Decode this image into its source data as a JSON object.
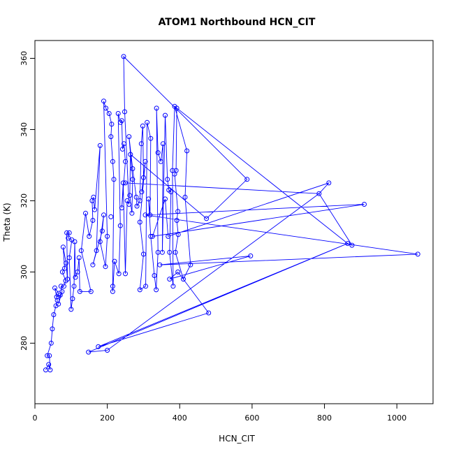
{
  "chart_data": {
    "type": "scatter",
    "title": "ATOM1 Northbound HCN_CIT",
    "xlabel": "HCN_CIT",
    "ylabel": "Theta (K)",
    "xlim": [
      0,
      1100
    ],
    "ylim": [
      263,
      365
    ],
    "xticks": [
      0,
      200,
      400,
      600,
      800,
      1000
    ],
    "yticks": [
      280,
      300,
      320,
      340,
      360
    ],
    "grid": false,
    "legend": "none",
    "color": "#0000ff",
    "series": [
      {
        "points": [
          [
            30,
            272.5
          ],
          [
            42,
            272.5
          ],
          [
            38,
            274
          ],
          [
            34,
            276.5
          ],
          [
            40,
            276.5
          ],
          [
            45,
            280
          ],
          [
            48,
            284
          ],
          [
            52,
            288
          ],
          [
            58,
            290.5
          ],
          [
            62,
            292
          ],
          [
            66,
            294
          ],
          [
            72,
            296
          ],
          [
            55,
            295.5
          ],
          [
            60,
            293
          ],
          [
            65,
            291
          ],
          [
            70,
            293.5
          ],
          [
            75,
            294.5
          ],
          [
            80,
            296
          ],
          [
            85,
            297.5
          ],
          [
            90,
            298
          ],
          [
            76,
            300
          ],
          [
            82,
            301
          ],
          [
            86,
            302.5
          ],
          [
            95,
            304
          ],
          [
            78,
            307
          ],
          [
            88,
            311
          ],
          [
            95,
            311
          ],
          [
            92,
            309.5
          ],
          [
            102,
            309
          ],
          [
            110,
            308.5
          ],
          [
            100,
            289.5
          ],
          [
            104,
            292.5
          ],
          [
            108,
            296
          ],
          [
            112,
            298.5
          ],
          [
            118,
            300
          ],
          [
            122,
            304
          ],
          [
            128,
            306
          ],
          [
            140,
            316.5
          ],
          [
            124,
            294.5
          ],
          [
            155,
            294.5
          ],
          [
            150,
            310
          ],
          [
            160,
            314.5
          ],
          [
            165,
            317.5
          ],
          [
            158,
            320
          ],
          [
            162,
            321
          ],
          [
            180,
            335.5
          ],
          [
            190,
            348
          ],
          [
            196,
            346
          ],
          [
            205,
            344.5
          ],
          [
            212,
            341.5
          ],
          [
            210,
            338
          ],
          [
            215,
            331
          ],
          [
            218,
            326
          ],
          [
            230,
            344.5
          ],
          [
            236,
            342
          ],
          [
            240,
            342.5
          ],
          [
            246,
            336
          ],
          [
            250,
            331
          ],
          [
            242,
            334.5
          ],
          [
            220,
            303
          ],
          [
            160,
            302
          ],
          [
            170,
            306
          ],
          [
            180,
            308.5
          ],
          [
            190,
            316
          ],
          [
            186,
            311.5
          ],
          [
            195,
            301.5
          ],
          [
            200,
            310
          ],
          [
            210,
            315.5
          ],
          [
            215,
            296
          ],
          [
            215,
            294.5
          ],
          [
            232,
            299.5
          ],
          [
            236,
            313
          ],
          [
            240,
            318
          ],
          [
            244,
            325
          ],
          [
            250,
            299.5
          ],
          [
            255,
            320
          ],
          [
            260,
            319
          ],
          [
            262,
            321.5
          ],
          [
            268,
            316.5
          ],
          [
            270,
            326
          ],
          [
            282,
            318.5
          ],
          [
            290,
            320
          ],
          [
            295,
            322.5
          ],
          [
            300,
            326.5
          ],
          [
            305,
            331
          ],
          [
            294,
            336
          ],
          [
            298,
            341
          ],
          [
            310,
            342
          ],
          [
            320,
            337.5
          ],
          [
            336,
            346
          ],
          [
            340,
            333.5
          ],
          [
            348,
            331
          ],
          [
            354,
            336
          ],
          [
            360,
            344
          ],
          [
            366,
            326
          ],
          [
            370,
            323
          ],
          [
            376,
            322.5
          ],
          [
            380,
            328.5
          ],
          [
            386,
            346.5
          ],
          [
            390,
            328.5
          ],
          [
            392,
            346
          ],
          [
            386,
            327.5
          ],
          [
            395,
            317
          ],
          [
            392,
            314.5
          ],
          [
            396,
            310.5
          ],
          [
            388,
            305.5
          ],
          [
            382,
            296
          ],
          [
            372,
            305.5
          ],
          [
            352,
            305.5
          ],
          [
            340,
            305.5
          ],
          [
            335,
            295
          ],
          [
            330,
            299
          ],
          [
            320,
            310
          ],
          [
            318,
            316
          ],
          [
            314,
            320.5
          ],
          [
            306,
            296
          ],
          [
            290,
            295
          ],
          [
            250,
            325
          ],
          [
            248,
            345
          ],
          [
            245,
            360.5
          ],
          [
            260,
            338
          ],
          [
            264,
            333
          ],
          [
            270,
            329
          ],
          [
            280,
            321
          ],
          [
            290,
            314
          ],
          [
            300,
            305
          ],
          [
            410,
            298
          ],
          [
            430,
            302
          ],
          [
            415,
            321
          ],
          [
            420,
            334
          ],
          [
            586,
            326
          ],
          [
            596,
            304.5
          ],
          [
            474,
            315
          ],
          [
            785,
            322
          ],
          [
            812,
            325
          ],
          [
            864,
            308
          ],
          [
            876,
            307.5
          ],
          [
            910,
            319
          ],
          [
            1058,
            305
          ],
          [
            480,
            288.5
          ],
          [
            200,
            278
          ],
          [
            148,
            277.5
          ],
          [
            175,
            279
          ],
          [
            368,
            310
          ],
          [
            360,
            320.5
          ],
          [
            325,
            310
          ],
          [
            305,
            316
          ],
          [
            345,
            302
          ],
          [
            372,
            298
          ],
          [
            395,
            300
          ]
        ],
        "path": [
          [
            30,
            272.5
          ],
          [
            38,
            274
          ],
          [
            42,
            272.5
          ],
          [
            40,
            276.5
          ],
          [
            34,
            276.5
          ],
          [
            45,
            280
          ],
          [
            48,
            284
          ],
          [
            52,
            288
          ],
          [
            58,
            290.5
          ],
          [
            62,
            292
          ],
          [
            55,
            295.5
          ],
          [
            66,
            294
          ],
          [
            60,
            293
          ],
          [
            70,
            293.5
          ],
          [
            65,
            291
          ],
          [
            75,
            294.5
          ],
          [
            72,
            296
          ],
          [
            80,
            296
          ],
          [
            85,
            297.5
          ],
          [
            76,
            300
          ],
          [
            82,
            301
          ],
          [
            78,
            307
          ],
          [
            86,
            302.5
          ],
          [
            90,
            298
          ],
          [
            88,
            311
          ],
          [
            95,
            311
          ],
          [
            92,
            309.5
          ],
          [
            102,
            309
          ],
          [
            95,
            304
          ],
          [
            100,
            289.5
          ],
          [
            104,
            292.5
          ],
          [
            108,
            296
          ],
          [
            110,
            308.5
          ],
          [
            112,
            298.5
          ],
          [
            118,
            300
          ],
          [
            122,
            304
          ],
          [
            124,
            294.5
          ],
          [
            155,
            294.5
          ],
          [
            128,
            306
          ],
          [
            140,
            316.5
          ],
          [
            150,
            310
          ],
          [
            160,
            314.5
          ],
          [
            158,
            320
          ],
          [
            162,
            321
          ],
          [
            165,
            317.5
          ],
          [
            180,
            335.5
          ],
          [
            170,
            306
          ],
          [
            160,
            302
          ],
          [
            186,
            311.5
          ],
          [
            190,
            316
          ],
          [
            180,
            308.5
          ],
          [
            195,
            301.5
          ],
          [
            200,
            310
          ],
          [
            190,
            348
          ],
          [
            196,
            346
          ],
          [
            205,
            344.5
          ],
          [
            212,
            341.5
          ],
          [
            210,
            338
          ],
          [
            215,
            331
          ],
          [
            218,
            326
          ],
          [
            215,
            296
          ],
          [
            215,
            294.5
          ],
          [
            220,
            303
          ],
          [
            232,
            299.5
          ],
          [
            236,
            313
          ],
          [
            230,
            344.5
          ],
          [
            236,
            342
          ],
          [
            240,
            342.5
          ],
          [
            242,
            334.5
          ],
          [
            246,
            336
          ],
          [
            250,
            331
          ],
          [
            240,
            318
          ],
          [
            244,
            325
          ],
          [
            250,
            299.5
          ],
          [
            255,
            320
          ],
          [
            260,
            319
          ],
          [
            248,
            345
          ],
          [
            245,
            360.5
          ],
          [
            586,
            326
          ],
          [
            474,
            315
          ],
          [
            264,
            333
          ],
          [
            262,
            321.5
          ],
          [
            268,
            316.5
          ],
          [
            270,
            326
          ],
          [
            260,
            338
          ],
          [
            270,
            329
          ],
          [
            280,
            321
          ],
          [
            282,
            318.5
          ],
          [
            290,
            320
          ],
          [
            294,
            336
          ],
          [
            298,
            341
          ],
          [
            300,
            326.5
          ],
          [
            295,
            322.5
          ],
          [
            305,
            331
          ],
          [
            290,
            314
          ],
          [
            300,
            305
          ],
          [
            290,
            295
          ],
          [
            306,
            296
          ],
          [
            310,
            342
          ],
          [
            320,
            337.5
          ],
          [
            318,
            316
          ],
          [
            314,
            320.5
          ],
          [
            320,
            310
          ],
          [
            330,
            299
          ],
          [
            335,
            295
          ],
          [
            340,
            305.5
          ],
          [
            336,
            346
          ],
          [
            340,
            333.5
          ],
          [
            348,
            331
          ],
          [
            354,
            336
          ],
          [
            352,
            305.5
          ],
          [
            360,
            344
          ],
          [
            366,
            326
          ],
          [
            370,
            323
          ],
          [
            376,
            322.5
          ],
          [
            372,
            305.5
          ],
          [
            382,
            296
          ],
          [
            380,
            328.5
          ],
          [
            386,
            346.5
          ],
          [
            392,
            346
          ],
          [
            390,
            328.5
          ],
          [
            386,
            327.5
          ],
          [
            395,
            317
          ],
          [
            392,
            314.5
          ],
          [
            396,
            310.5
          ],
          [
            388,
            305.5
          ],
          [
            410,
            298
          ],
          [
            430,
            302
          ],
          [
            415,
            321
          ],
          [
            420,
            334
          ],
          [
            386,
            346.5
          ],
          [
            864,
            308
          ],
          [
            876,
            307.5
          ],
          [
            785,
            322
          ],
          [
            812,
            325
          ],
          [
            368,
            310
          ],
          [
            360,
            320.5
          ],
          [
            325,
            310
          ],
          [
            910,
            319
          ],
          [
            305,
            316
          ],
          [
            1058,
            305
          ],
          [
            345,
            302
          ],
          [
            596,
            304.5
          ],
          [
            372,
            298
          ],
          [
            395,
            300
          ],
          [
            480,
            288.5
          ],
          [
            175,
            279
          ],
          [
            864,
            308
          ],
          [
            148,
            277.5
          ],
          [
            200,
            278
          ],
          [
            785,
            322
          ],
          [
            250,
            325
          ]
        ]
      }
    ]
  }
}
